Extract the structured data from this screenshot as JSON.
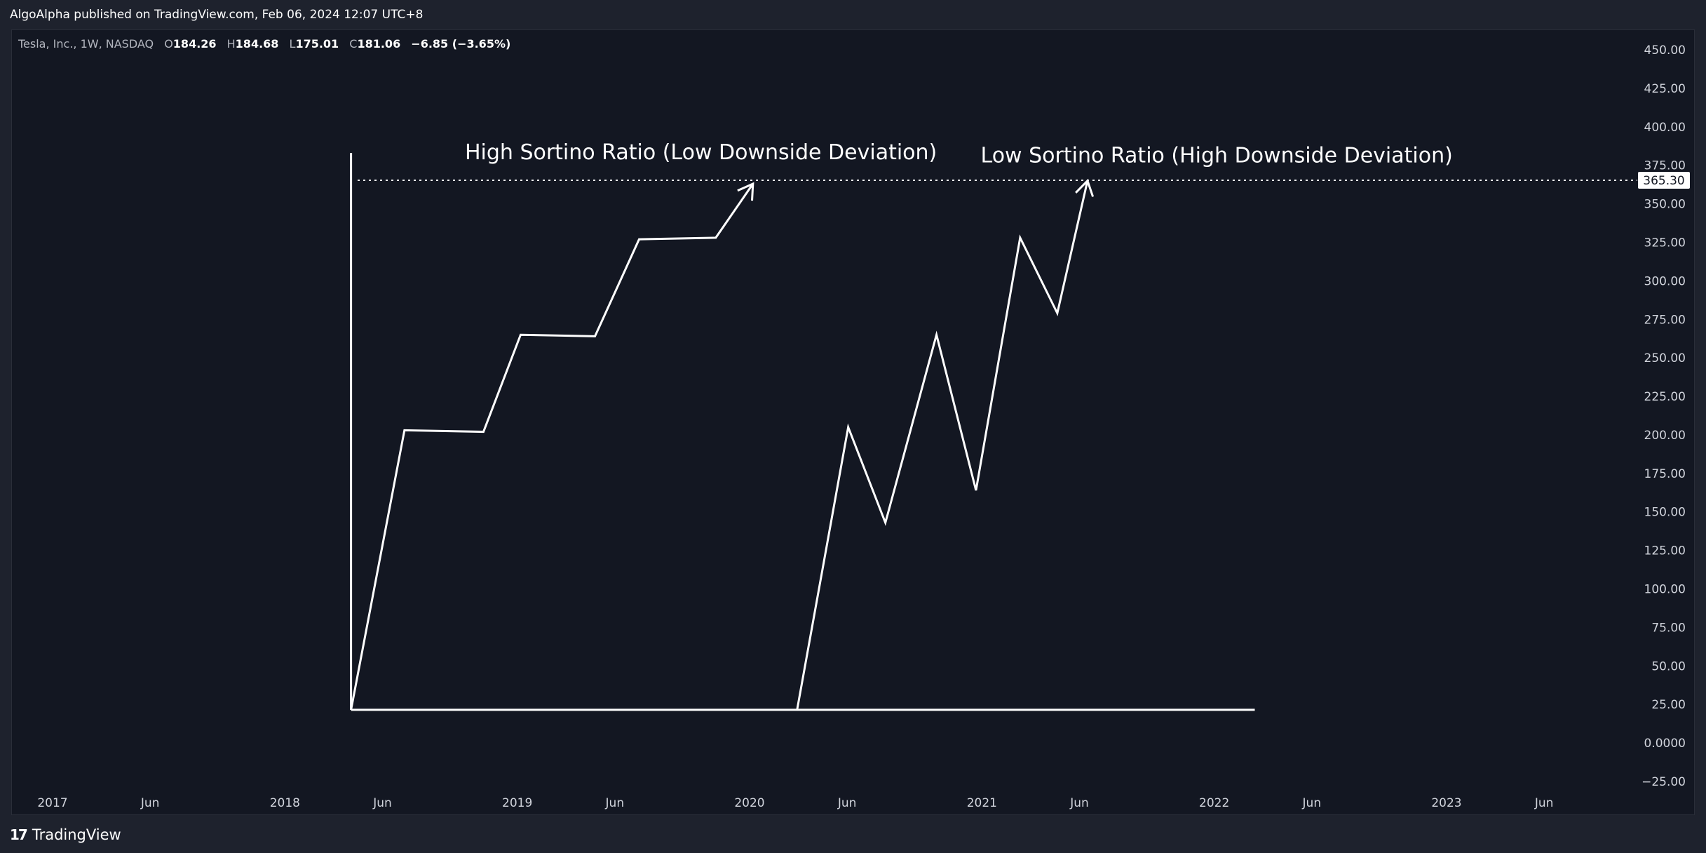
{
  "header": {
    "published": "AlgoAlpha published on TradingView.com, Feb 06, 2024 12:07 UTC+8"
  },
  "legend": {
    "symbol": "Tesla, Inc., 1W, NASDAQ",
    "open_label": "O",
    "open": "184.26",
    "high_label": "H",
    "high": "184.68",
    "low_label": "L",
    "low": "175.01",
    "close_label": "C",
    "close": "181.06",
    "change": "−6.85 (−3.65%)"
  },
  "footer": {
    "brand": "TradingView",
    "logo_icon": "tradingview-logo-icon"
  },
  "chart_data": {
    "type": "line",
    "y_ticks": [
      "450.00",
      "425.00",
      "400.00",
      "375.00",
      "350.00",
      "325.00",
      "300.00",
      "275.00",
      "250.00",
      "225.00",
      "200.00",
      "175.00",
      "150.00",
      "125.00",
      "100.00",
      "75.00",
      "50.00",
      "25.00",
      "0.0000",
      "−25.00"
    ],
    "y_tick_values": [
      450,
      425,
      400,
      375,
      350,
      325,
      300,
      275,
      250,
      225,
      200,
      175,
      150,
      125,
      100,
      75,
      50,
      25,
      0,
      -25
    ],
    "ylim": [
      -30,
      463
    ],
    "xlim": [
      2016.85,
      2024.0
    ],
    "x_ticks": [
      {
        "label": "2017",
        "x": 2017.0
      },
      {
        "label": "Jun",
        "x": 2017.42
      },
      {
        "label": "2018",
        "x": 2018.0
      },
      {
        "label": "Jun",
        "x": 2018.42
      },
      {
        "label": "2019",
        "x": 2019.0
      },
      {
        "label": "Jun",
        "x": 2019.42
      },
      {
        "label": "2020",
        "x": 2020.0
      },
      {
        "label": "Jun",
        "x": 2020.42
      },
      {
        "label": "2021",
        "x": 2021.0
      },
      {
        "label": "Jun",
        "x": 2021.42
      },
      {
        "label": "2022",
        "x": 2022.0
      },
      {
        "label": "Jun",
        "x": 2022.42
      },
      {
        "label": "2023",
        "x": 2023.0
      },
      {
        "label": "Jun",
        "x": 2023.42
      }
    ],
    "price_line": {
      "value": 365.3,
      "label": "365.30",
      "style": "dotted"
    },
    "grid": false,
    "annotations": [
      {
        "text": "High Sortino Ratio (Low Downside Deviation)",
        "x": 2018.85,
        "y": 379
      },
      {
        "text": "Low Sortino Ratio (High Downside Deviation)",
        "x": 2021.07,
        "y": 377
      }
    ],
    "drawings": [
      {
        "name": "vertical-axis-line",
        "points": [
          [
            2018.36,
            21.5
          ],
          [
            2018.36,
            383
          ]
        ]
      },
      {
        "name": "horizontal-axis-line",
        "points": [
          [
            2018.36,
            21.5
          ],
          [
            2022.25,
            21.5
          ]
        ]
      },
      {
        "name": "high-sortino-path",
        "points": [
          [
            2018.36,
            21.5
          ],
          [
            2018.59,
            203
          ],
          [
            2018.93,
            202
          ],
          [
            2019.09,
            265
          ],
          [
            2019.41,
            264
          ],
          [
            2019.6,
            327
          ],
          [
            2019.93,
            328
          ],
          [
            2020.09,
            363
          ]
        ],
        "arrow": true
      },
      {
        "name": "low-sortino-path",
        "points": [
          [
            2020.28,
            21.5
          ],
          [
            2020.5,
            205
          ],
          [
            2020.66,
            143
          ],
          [
            2020.88,
            265
          ],
          [
            2021.05,
            164
          ],
          [
            2021.24,
            328
          ],
          [
            2021.4,
            279
          ],
          [
            2021.53,
            365
          ]
        ],
        "arrow": true
      }
    ]
  }
}
